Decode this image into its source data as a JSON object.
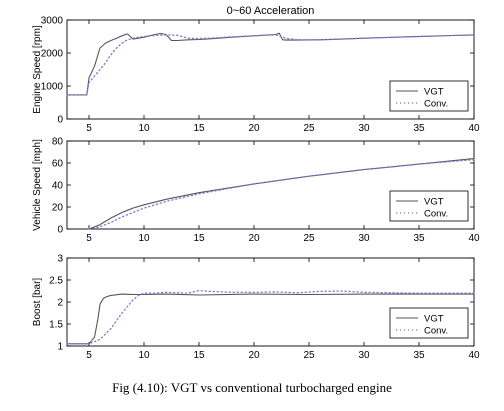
{
  "caption": "Fig (4.10): VGT vs conventional turbocharged engine",
  "chart_data": [
    {
      "type": "line",
      "title": "0~60 Acceleration",
      "xlabel": "",
      "ylabel": "Engine Speed [rpm]",
      "xlim": [
        3,
        40
      ],
      "ylim": [
        0,
        3000
      ],
      "xticks": [
        5,
        10,
        15,
        20,
        25,
        30,
        35,
        40
      ],
      "yticks": [
        0,
        1000,
        2000,
        3000
      ],
      "legend_position": "bottom-right",
      "legend": [
        "VGT",
        "Conv."
      ],
      "series": [
        {
          "name": "VGT",
          "style": "solid",
          "x": [
            3,
            4.8,
            5.0,
            5.5,
            6.0,
            6.5,
            7.0,
            7.5,
            8.0,
            8.5,
            9.0,
            9.5,
            10.0,
            10.5,
            11.0,
            11.5,
            12.0,
            12.5,
            13.0,
            14.0,
            15.0,
            16.0,
            18.0,
            20.0,
            22.0,
            22.3,
            22.6,
            23.0,
            24.0,
            26.0,
            28.0,
            30.0,
            32.0,
            34.0,
            36.0,
            38.0,
            40.0
          ],
          "y": [
            730,
            730,
            1250,
            1600,
            2150,
            2300,
            2380,
            2450,
            2520,
            2580,
            2420,
            2450,
            2480,
            2520,
            2560,
            2590,
            2560,
            2380,
            2380,
            2400,
            2410,
            2430,
            2480,
            2520,
            2560,
            2600,
            2400,
            2390,
            2390,
            2400,
            2420,
            2450,
            2470,
            2490,
            2510,
            2530,
            2550
          ]
        },
        {
          "name": "Conv.",
          "style": "dotted",
          "x": [
            3,
            4.8,
            5.0,
            5.5,
            6.0,
            6.5,
            7.0,
            7.5,
            8.0,
            8.5,
            9.0,
            9.5,
            10.0,
            11.0,
            12.0,
            13.0,
            14.0,
            15.0,
            16.0,
            18.0,
            20.0,
            21.0,
            22.0,
            23.0,
            24.0,
            26.0,
            28.0,
            30.0,
            32.0,
            34.0,
            36.0,
            38.0,
            40.0
          ],
          "y": [
            730,
            730,
            1100,
            1300,
            1500,
            1700,
            1950,
            2150,
            2300,
            2400,
            2450,
            2480,
            2500,
            2530,
            2550,
            2540,
            2450,
            2440,
            2450,
            2490,
            2520,
            2540,
            2550,
            2440,
            2400,
            2400,
            2420,
            2450,
            2470,
            2490,
            2510,
            2530,
            2550
          ]
        }
      ]
    },
    {
      "type": "line",
      "title": "",
      "xlabel": "",
      "ylabel": "Vehicle Speed [mph]",
      "xlim": [
        3,
        40
      ],
      "ylim": [
        0,
        80
      ],
      "xticks": [
        5,
        10,
        15,
        20,
        25,
        30,
        35,
        40
      ],
      "yticks": [
        0,
        20,
        40,
        60,
        80
      ],
      "legend_position": "bottom-right",
      "legend": [
        "VGT",
        "Conv."
      ],
      "series": [
        {
          "name": "VGT",
          "style": "solid",
          "x": [
            5.0,
            6.0,
            7.0,
            8.0,
            9.0,
            10.0,
            12.0,
            15.0,
            20.0,
            25.0,
            30.0,
            35.0,
            40.0
          ],
          "y": [
            0,
            4,
            10,
            15,
            19,
            22,
            27,
            33,
            41,
            48,
            54,
            59,
            64
          ]
        },
        {
          "name": "Conv.",
          "style": "dotted",
          "x": [
            5.0,
            6.0,
            7.0,
            8.0,
            9.0,
            10.0,
            12.0,
            15.0,
            20.0,
            25.0,
            30.0,
            35.0,
            40.0
          ],
          "y": [
            0,
            2,
            6,
            11,
            15,
            19,
            25,
            32,
            41,
            48,
            54,
            59,
            63
          ]
        }
      ]
    },
    {
      "type": "line",
      "title": "",
      "xlabel": "",
      "ylabel": "Boost [bar]",
      "xlim": [
        3,
        40
      ],
      "ylim": [
        1,
        3
      ],
      "xticks": [
        5,
        10,
        15,
        20,
        25,
        30,
        35,
        40
      ],
      "yticks": [
        1,
        1.5,
        2,
        2.5,
        3
      ],
      "legend_position": "bottom-right",
      "legend": [
        "VGT",
        "Conv."
      ],
      "series": [
        {
          "name": "VGT",
          "style": "solid",
          "x": [
            3,
            5.0,
            5.5,
            5.8,
            6.0,
            6.3,
            6.6,
            7.0,
            8.0,
            9.0,
            10.0,
            12.0,
            15.0,
            20.0,
            25.0,
            30.0,
            35.0,
            40.0
          ],
          "y": [
            1.05,
            1.05,
            1.2,
            1.6,
            1.95,
            2.08,
            2.12,
            2.15,
            2.18,
            2.17,
            2.17,
            2.18,
            2.16,
            2.18,
            2.17,
            2.18,
            2.18,
            2.18
          ]
        },
        {
          "name": "Conv.",
          "style": "dotted",
          "x": [
            3,
            5.0,
            6.0,
            7.0,
            8.0,
            9.0,
            9.5,
            10.0,
            11.0,
            12.0,
            14.0,
            15.0,
            16.0,
            18.0,
            20.0,
            22.0,
            24.0,
            26.0,
            28.0,
            30.0,
            35.0,
            40.0
          ],
          "y": [
            1.05,
            1.05,
            1.15,
            1.4,
            1.75,
            2.05,
            2.15,
            2.2,
            2.2,
            2.22,
            2.2,
            2.26,
            2.24,
            2.22,
            2.22,
            2.23,
            2.21,
            2.24,
            2.25,
            2.22,
            2.2,
            2.2
          ]
        }
      ]
    }
  ]
}
